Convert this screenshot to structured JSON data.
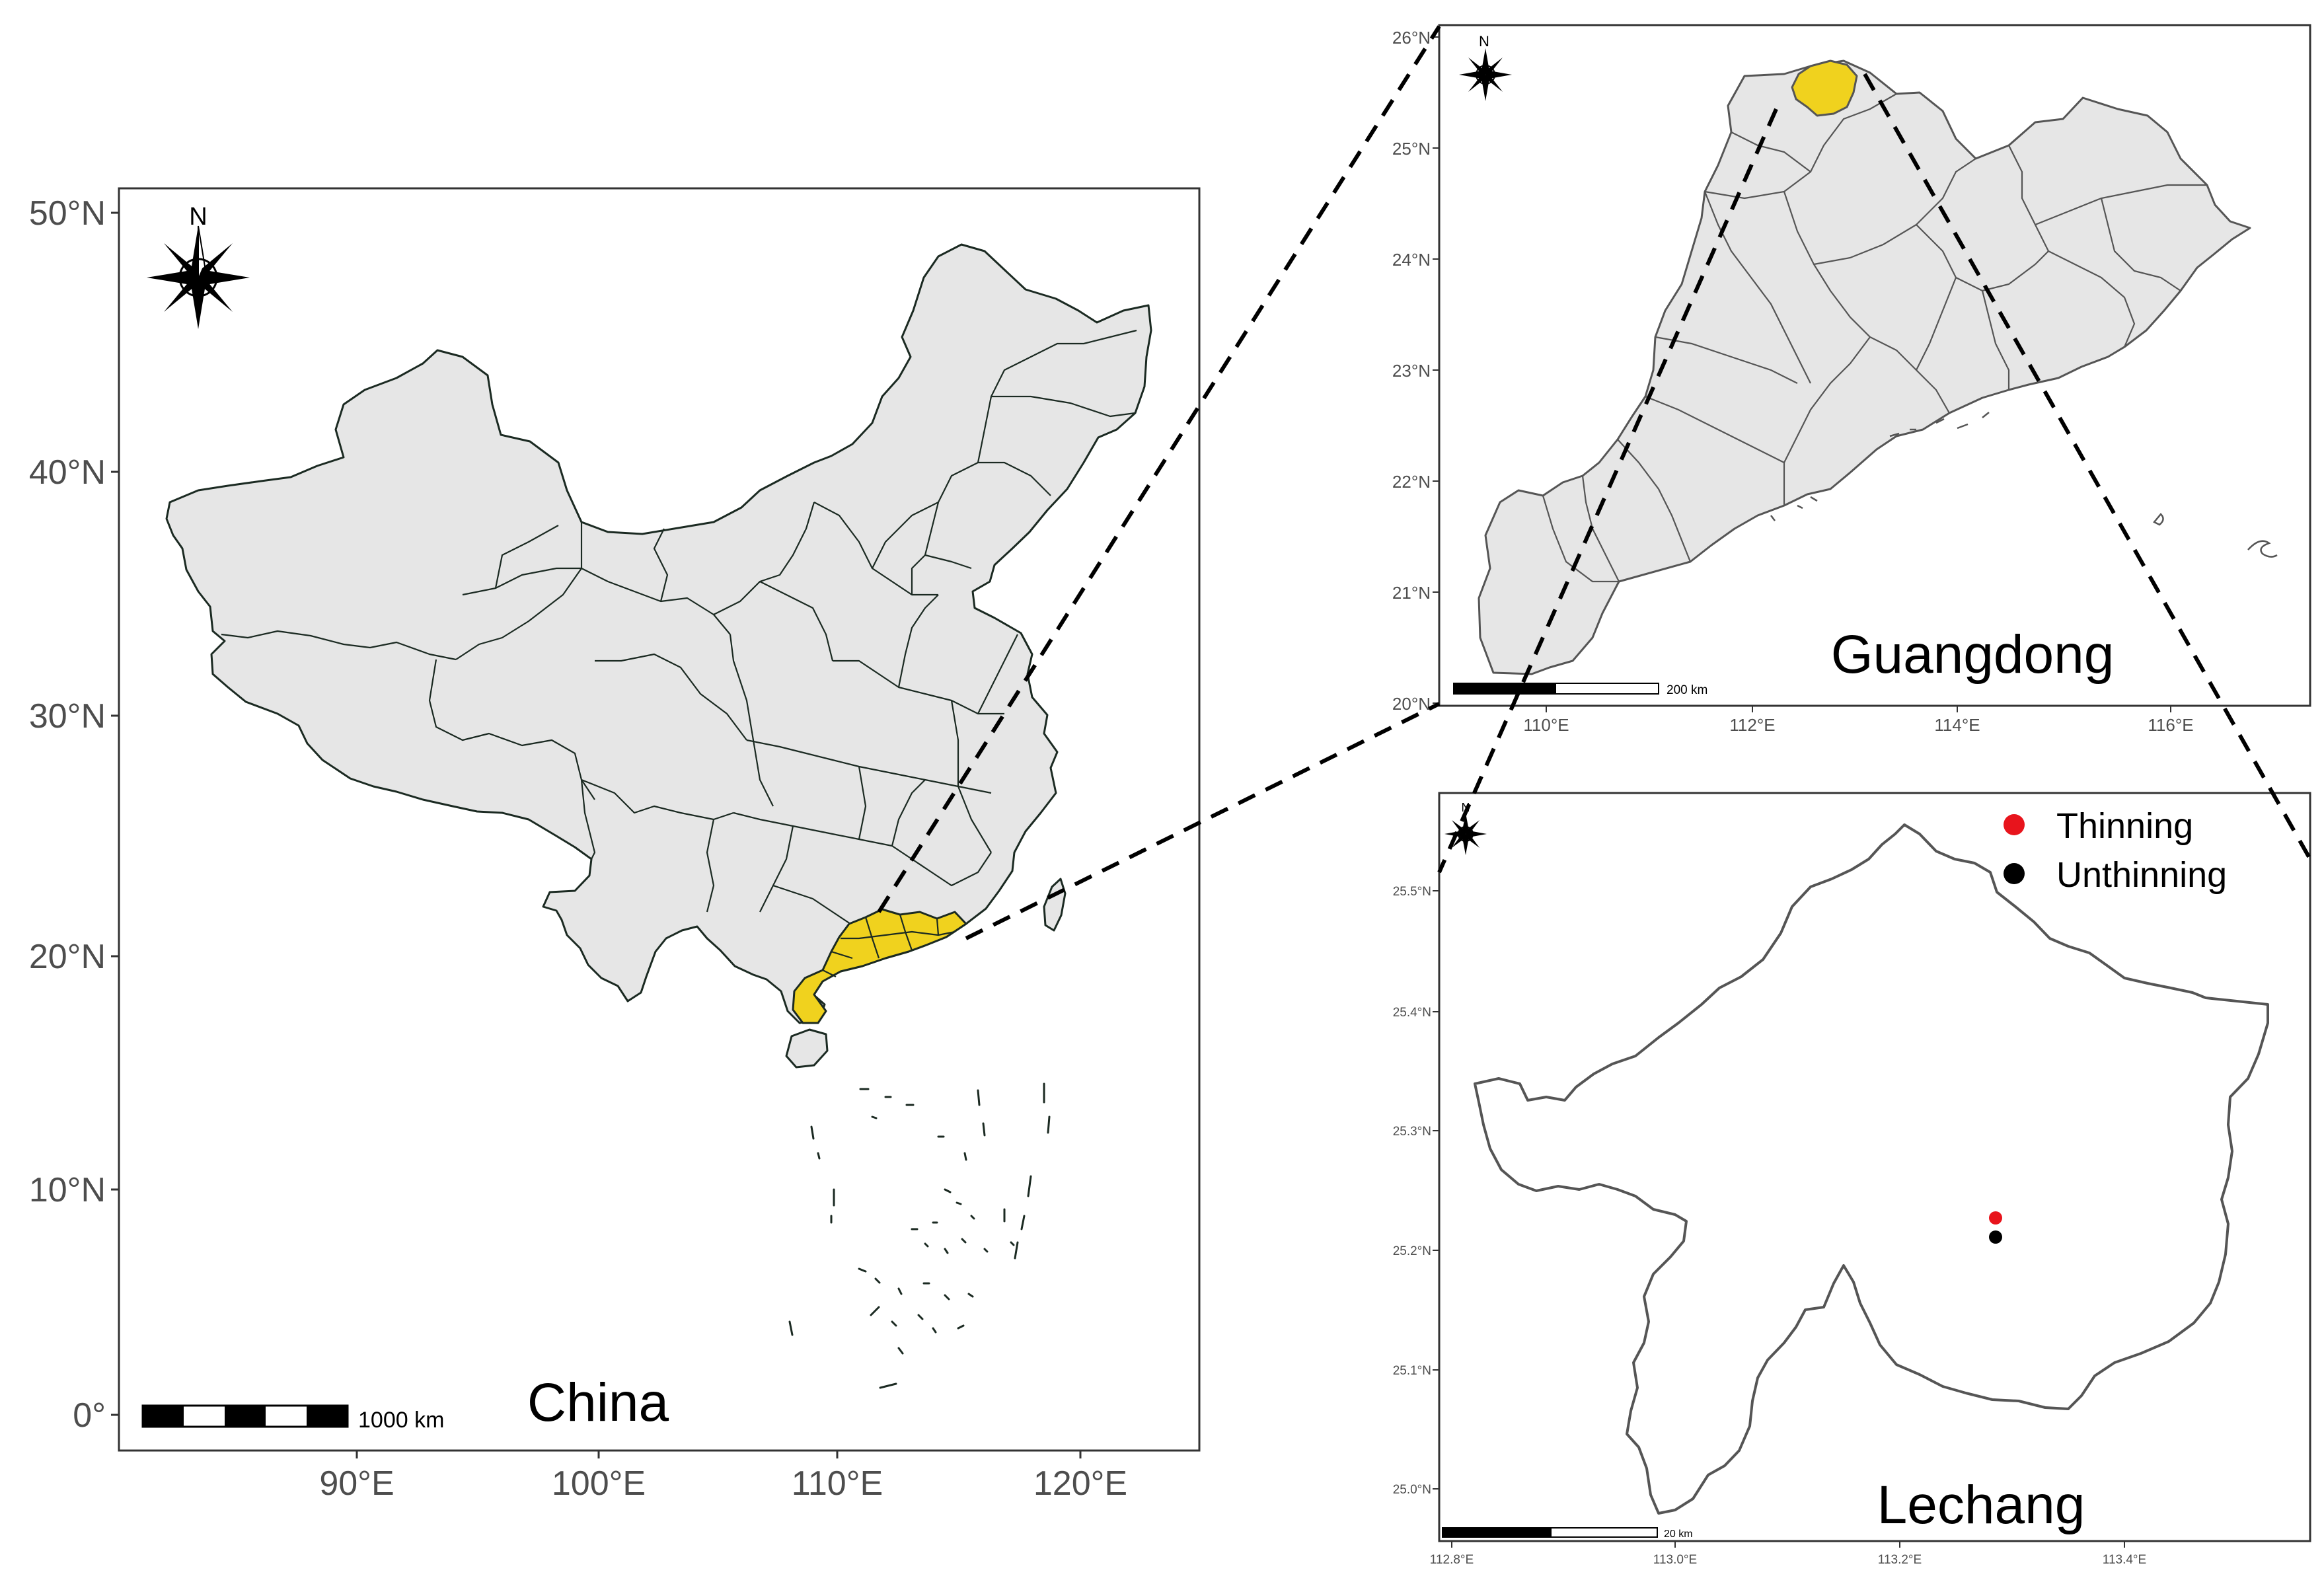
{
  "figure": {
    "panels": [
      {
        "id": "china",
        "title": "China",
        "lat_ticks": [
          "50°N",
          "40°N",
          "30°N",
          "20°N",
          "10°N",
          "0°"
        ],
        "lon_ticks": [
          "90°E",
          "100°E",
          "110°E",
          "120°E"
        ],
        "scale_label": "1000 km",
        "north_label": "N",
        "highlight_region": "Guangdong",
        "highlight_color": "#f0d21e",
        "land_color": "#e6e6e6"
      },
      {
        "id": "guangdong",
        "title": "Guangdong",
        "lat_ticks": [
          "26°N",
          "25°N",
          "24°N",
          "23°N",
          "22°N",
          "21°N",
          "20°N"
        ],
        "lon_ticks": [
          "110°E",
          "112°E",
          "114°E",
          "116°E"
        ],
        "scale_label": "200 km",
        "north_label": "N",
        "highlight_region": "Lechang",
        "highlight_color": "#f0d21e",
        "land_color": "#e6e6e6"
      },
      {
        "id": "lechang",
        "title": "Lechang",
        "lat_ticks": [
          "25.5°N",
          "25.4°N",
          "25.3°N",
          "25.2°N",
          "25.1°N",
          "25.0°N"
        ],
        "lon_ticks": [
          "112.8°E",
          "113.0°E",
          "113.2°E",
          "113.4°E"
        ],
        "scale_label": "20 km",
        "north_label": "N",
        "legend": [
          {
            "label": "Thinning",
            "color": "#e8141c"
          },
          {
            "label": "Unthinning",
            "color": "#000000"
          }
        ],
        "points": [
          {
            "label": "Thinning",
            "lon": 113.3,
            "lat": 25.228,
            "color": "#e8141c"
          },
          {
            "label": "Unthinning",
            "lon": 113.3,
            "lat": 25.212,
            "color": "#000000"
          }
        ]
      }
    ]
  }
}
